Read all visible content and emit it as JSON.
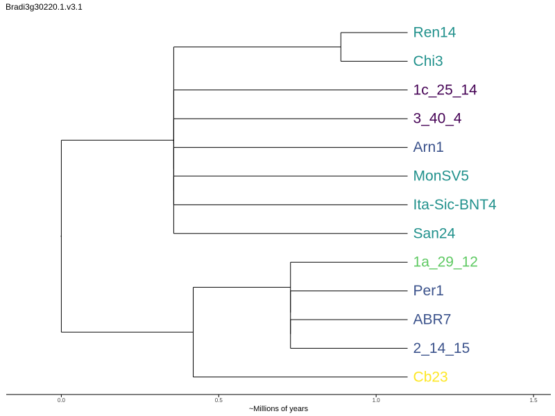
{
  "title": "Bradi3g30220.1.v3.1",
  "chart_data": {
    "type": "dendrogram",
    "xlabel": "~Millions of years",
    "xlim": [
      -0.175,
      1.555
    ],
    "xticks": [
      {
        "value": 0.0,
        "label": "0.0"
      },
      {
        "value": 0.5,
        "label": "0.5"
      },
      {
        "value": 1.0,
        "label": "1.0"
      },
      {
        "value": 1.5,
        "label": "1.5"
      }
    ],
    "leaf_x": 1.1,
    "leaves": [
      {
        "name": "Ren14",
        "color": "#21918c"
      },
      {
        "name": "Chi3",
        "color": "#21918c"
      },
      {
        "name": "1c_25_14",
        "color": "#440154"
      },
      {
        "name": "3_40_4",
        "color": "#440154"
      },
      {
        "name": "Arn1",
        "color": "#3b528b"
      },
      {
        "name": "MonSV5",
        "color": "#21918c"
      },
      {
        "name": "Ita-Sic-BNT4",
        "color": "#21918c"
      },
      {
        "name": "San24",
        "color": "#21918c"
      },
      {
        "name": "1a_29_12",
        "color": "#5ec962"
      },
      {
        "name": "Per1",
        "color": "#3b528b"
      },
      {
        "name": "ABR7",
        "color": "#3b528b"
      },
      {
        "name": "2_14_15",
        "color": "#3b528b"
      },
      {
        "name": "Cb23",
        "color": "#fde725"
      }
    ],
    "tree": {
      "x": 0.0,
      "children": [
        {
          "x": 0.357,
          "children": [
            {
              "x": 0.888,
              "children": [
                {
                  "leaf": 0
                },
                {
                  "leaf": 1
                }
              ]
            },
            {
              "x": 0.357,
              "children": [
                {
                  "leaf": 2
                },
                {
                  "x": 0.357,
                  "children": [
                    {
                      "leaf": 3
                    },
                    {
                      "x": 0.357,
                      "children": [
                        {
                          "leaf": 4
                        },
                        {
                          "x": 0.357,
                          "children": [
                            {
                              "leaf": 5
                            },
                            {
                              "leaf": 6
                            }
                          ]
                        }
                      ]
                    }
                  ]
                }
              ]
            },
            {
              "leaf": 7
            }
          ]
        },
        {
          "x": 0.419,
          "children": [
            {
              "x": 0.728,
              "children": [
                {
                  "leaf": 8
                },
                {
                  "x": 0.728,
                  "children": [
                    {
                      "leaf": 9
                    },
                    {
                      "x": 0.728,
                      "children": [
                        {
                          "leaf": 10
                        },
                        {
                          "leaf": 11
                        }
                      ]
                    }
                  ]
                }
              ]
            },
            {
              "leaf": 12
            }
          ]
        }
      ]
    }
  }
}
